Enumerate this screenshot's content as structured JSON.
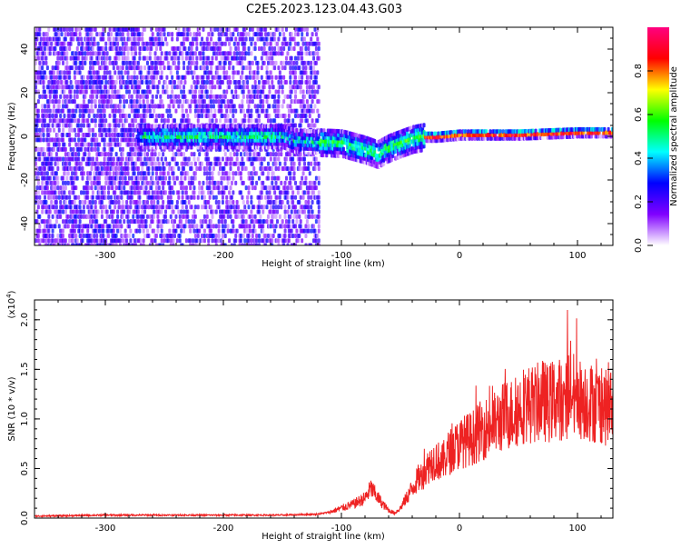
{
  "figure": {
    "title": "C2E5.2023.123.04.43.G03"
  },
  "chart_data": [
    {
      "type": "heatmap",
      "xlabel": "Height of straight line (km)",
      "ylabel": "Frequency (Hz)",
      "xlim": [
        -360,
        130
      ],
      "ylim": [
        -50,
        50
      ],
      "xticks": [
        -300,
        -200,
        -100,
        0,
        100
      ],
      "yticks": [
        -40,
        -20,
        0,
        20,
        40
      ],
      "colorbar": {
        "label": "Normalized spectral amplitude",
        "range": [
          0.0,
          1.0
        ],
        "ticks": [
          0.0,
          0.2,
          0.4,
          0.6,
          0.8
        ],
        "colors": [
          "#ffffff",
          "#8000ff",
          "#0000ff",
          "#00ffff",
          "#00ff00",
          "#ffff00",
          "#ff0000",
          "#ff0080"
        ]
      },
      "regions": [
        {
          "x": [
            -360,
            -270
          ],
          "freq_spread": 50,
          "band_level": 0.3
        },
        {
          "x": [
            -270,
            -150
          ],
          "freq_spread": 50,
          "band_level": 0.5
        },
        {
          "x": [
            -150,
            -120
          ],
          "freq_spread": 50,
          "band_level": 0.45
        },
        {
          "x": [
            -120,
            -30
          ],
          "freq_spread": 8,
          "band_level": 0.55
        },
        {
          "x": [
            -30,
            130
          ],
          "freq_spread": 3,
          "band_level": 0.65
        }
      ],
      "band_center_points": {
        "x": [
          -360,
          -270,
          -200,
          -150,
          -140,
          -100,
          -80,
          -70,
          -60,
          -50,
          -40,
          -30,
          -20,
          0,
          50,
          100,
          130
        ],
        "freq": [
          0,
          0,
          0,
          0,
          -2,
          -3,
          -6,
          -8,
          -5,
          -3,
          -1,
          0,
          0,
          1,
          1,
          2,
          2
        ]
      }
    },
    {
      "type": "line",
      "xlabel": "Height of straight line (km)",
      "ylabel": "SNR (10 * v/v)",
      "y_multiplier": "(x10",
      "y_multiplier_exp": "4",
      "y_multiplier_close": ")",
      "xlim": [
        -360,
        130
      ],
      "ylim": [
        0,
        2.2
      ],
      "xticks": [
        -300,
        -200,
        -100,
        0,
        100
      ],
      "yticks": [
        "0.0",
        "0.5",
        "1.0",
        "1.5",
        "2.0"
      ],
      "series": [
        {
          "color": "#ee2222",
          "x": [
            -360,
            -300,
            -260,
            -200,
            -150,
            -120,
            -110,
            -100,
            -90,
            -80,
            -75,
            -70,
            -65,
            -60,
            -55,
            -50,
            -45,
            -40,
            -35,
            -30,
            -25,
            -20,
            -15,
            -10,
            -5,
            0,
            5,
            10,
            15,
            20,
            25,
            30,
            35,
            40,
            45,
            50,
            55,
            60,
            65,
            70,
            75,
            80,
            85,
            90,
            95,
            100,
            105,
            110,
            115,
            120,
            125,
            130
          ],
          "y": [
            0.02,
            0.03,
            0.03,
            0.03,
            0.03,
            0.04,
            0.06,
            0.1,
            0.14,
            0.2,
            0.3,
            0.22,
            0.14,
            0.08,
            0.05,
            0.1,
            0.2,
            0.3,
            0.4,
            0.45,
            0.55,
            0.6,
            0.55,
            0.65,
            0.7,
            0.75,
            0.78,
            0.8,
            0.85,
            0.9,
            0.92,
            0.95,
            1.0,
            1.05,
            1.05,
            1.1,
            1.15,
            1.15,
            1.15,
            1.2,
            1.15,
            1.2,
            1.2,
            1.2,
            1.3,
            1.2,
            1.2,
            1.18,
            1.15,
            1.15,
            1.1,
            1.1
          ]
        }
      ]
    }
  ]
}
